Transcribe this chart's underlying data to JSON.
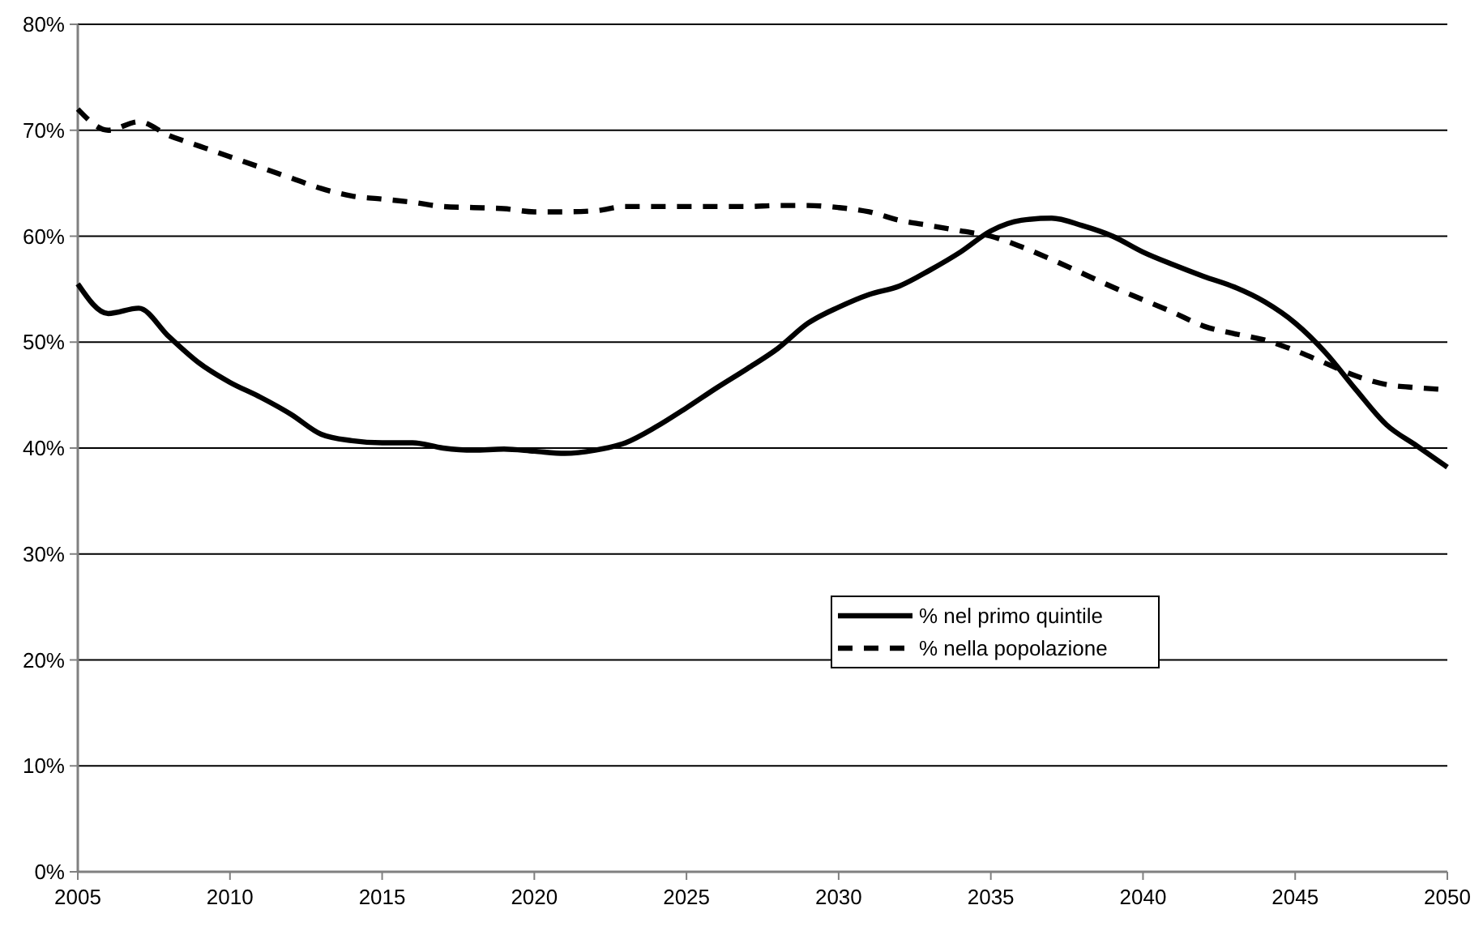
{
  "chart_data": {
    "type": "line",
    "x": [
      2005,
      2006,
      2007,
      2008,
      2009,
      2010,
      2011,
      2012,
      2013,
      2014,
      2015,
      2016,
      2017,
      2018,
      2019,
      2020,
      2021,
      2022,
      2023,
      2024,
      2025,
      2026,
      2027,
      2028,
      2029,
      2030,
      2031,
      2032,
      2033,
      2034,
      2035,
      2036,
      2037,
      2038,
      2039,
      2040,
      2041,
      2042,
      2043,
      2044,
      2045,
      2046,
      2047,
      2048,
      2049,
      2050
    ],
    "series": [
      {
        "name": "% nel primo quintile",
        "color": "#000000",
        "line_style": "solid",
        "values": [
          55.5,
          52.7,
          53.2,
          50.5,
          48,
          46.2,
          44.8,
          43.2,
          41.3,
          40.7,
          40.5,
          40.5,
          40,
          39.8,
          39.9,
          39.7,
          39.5,
          39.8,
          40.5,
          42,
          43.8,
          45.7,
          47.5,
          49.4,
          51.8,
          53.3,
          54.5,
          55.3,
          56.8,
          58.5,
          60.5,
          61.5,
          61.7,
          61,
          60,
          58.5,
          57.3,
          56.2,
          55.2,
          53.8,
          51.8,
          49,
          45.5,
          42.2,
          40.2,
          38.2
        ]
      },
      {
        "name": "% nella popolazione",
        "color": "#000000",
        "line_style": "dashed",
        "values": [
          72,
          70,
          70.8,
          69.5,
          68.5,
          67.5,
          66.5,
          65.5,
          64.5,
          63.8,
          63.5,
          63.2,
          62.8,
          62.7,
          62.6,
          62.3,
          62.3,
          62.4,
          62.8,
          62.8,
          62.8,
          62.8,
          62.8,
          62.9,
          62.9,
          62.7,
          62.3,
          61.5,
          61,
          60.5,
          60,
          59,
          57.8,
          56.5,
          55.2,
          54,
          52.8,
          51.5,
          50.8,
          50.2,
          49.2,
          48,
          46.8,
          46,
          45.7,
          45.5
        ]
      }
    ],
    "xlim": [
      2005,
      2050
    ],
    "xticks": [
      2005,
      2010,
      2015,
      2020,
      2025,
      2030,
      2035,
      2040,
      2045,
      2050
    ],
    "ylim": [
      0,
      80
    ],
    "yticks": [
      {
        "value": 0,
        "label": "0%"
      },
      {
        "value": 10,
        "label": "10%"
      },
      {
        "value": 20,
        "label": "20%"
      },
      {
        "value": 30,
        "label": "30%"
      },
      {
        "value": 40,
        "label": "40%"
      },
      {
        "value": 50,
        "label": "50%"
      },
      {
        "value": 60,
        "label": "60%"
      },
      {
        "value": 70,
        "label": "70%"
      },
      {
        "value": 80,
        "label": "80%"
      }
    ],
    "grid": "y",
    "legend": "right",
    "marker": "none"
  }
}
